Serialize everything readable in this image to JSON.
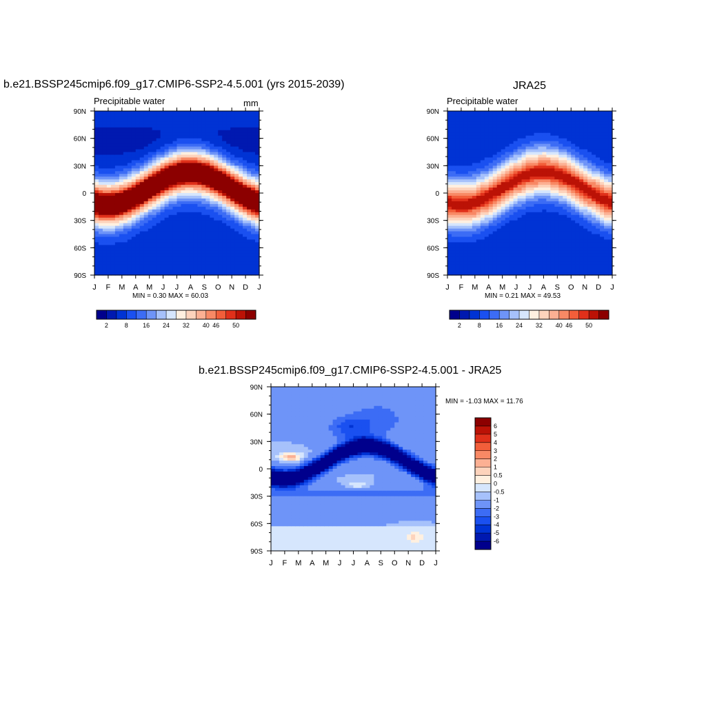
{
  "chart_data": [
    {
      "type": "heatmap",
      "title": "b.e21.BSSP245cmip6.f09_g17.CMIP6-SSP2-4.5.001 (yrs 2015-2039)",
      "left_label": "Precipitable water",
      "right_label": "mm",
      "xticks": [
        "J",
        "F",
        "M",
        "A",
        "M",
        "J",
        "J",
        "A",
        "S",
        "O",
        "N",
        "D",
        "J"
      ],
      "yticks": [
        "90N",
        "60N",
        "30N",
        "0",
        "30S",
        "60S",
        "90S"
      ],
      "min_max_text": "MIN =   0.30 MAX =  60.03",
      "colorbar_labels": [
        "2",
        "8",
        "16",
        "24",
        "32",
        "40",
        "46",
        "50"
      ],
      "colors": [
        "#00008c",
        "#0019b0",
        "#0033d4",
        "#1a50f0",
        "#3c6cf5",
        "#6e94f8",
        "#a6c1fb",
        "#d6e6fd",
        "#fff0e0",
        "#fdd3bc",
        "#fcb093",
        "#f88965",
        "#f25e3a",
        "#e0301a",
        "#bb1206",
        "#8c0000"
      ],
      "levels": [
        2,
        4,
        8,
        12,
        16,
        20,
        24,
        28,
        32,
        36,
        40,
        44,
        46,
        48,
        50
      ],
      "peak_value": 60.03,
      "min_value": 0.3
    },
    {
      "type": "heatmap",
      "title": "JRA25",
      "left_label": "Precipitable water",
      "right_label": "",
      "xticks": [
        "J",
        "F",
        "M",
        "A",
        "M",
        "J",
        "J",
        "A",
        "S",
        "O",
        "N",
        "D",
        "J"
      ],
      "yticks": [
        "90N",
        "60N",
        "30N",
        "0",
        "30S",
        "60S",
        "90S"
      ],
      "min_max_text": "MIN =   0.21 MAX =  49.53",
      "colorbar_labels": [
        "2",
        "8",
        "16",
        "24",
        "32",
        "40",
        "46",
        "50"
      ],
      "colors": [
        "#00008c",
        "#0019b0",
        "#0033d4",
        "#1a50f0",
        "#3c6cf5",
        "#6e94f8",
        "#a6c1fb",
        "#d6e6fd",
        "#fff0e0",
        "#fdd3bc",
        "#fcb093",
        "#f88965",
        "#f25e3a",
        "#e0301a",
        "#bb1206",
        "#8c0000"
      ],
      "levels": [
        2,
        4,
        8,
        12,
        16,
        20,
        24,
        28,
        32,
        36,
        40,
        44,
        46,
        48,
        50
      ],
      "peak_value": 49.53,
      "min_value": 0.21
    },
    {
      "type": "heatmap",
      "title": "b.e21.BSSP245cmip6.f09_g17.CMIP6-SSP2-4.5.001 - JRA25",
      "left_label": "",
      "right_label": "",
      "xticks": [
        "J",
        "F",
        "M",
        "A",
        "M",
        "J",
        "J",
        "A",
        "S",
        "O",
        "N",
        "D",
        "J"
      ],
      "yticks": [
        "90N",
        "60N",
        "30N",
        "0",
        "30S",
        "60S",
        "90S"
      ],
      "min_max_text": "MIN =  -1.03 MAX =  11.76",
      "colorbar_labels": [
        "6",
        "5",
        "4",
        "3",
        "2",
        "1",
        "0.5",
        "0",
        "-0.5",
        "-1",
        "-2",
        "-3",
        "-4",
        "-5",
        "-6"
      ],
      "colors": [
        "#8c0000",
        "#bb1206",
        "#e0301a",
        "#f25e3a",
        "#f88965",
        "#fcb093",
        "#fdd3bc",
        "#fff0e0",
        "#d6e6fd",
        "#a6c1fb",
        "#6e94f8",
        "#3c6cf5",
        "#1a50f0",
        "#0033d4",
        "#0019b0",
        "#00008c"
      ],
      "levels": [
        -6,
        -5,
        -4,
        -3,
        -2,
        -1,
        -0.5,
        0,
        0.5,
        1,
        2,
        3,
        4,
        5,
        6
      ],
      "peak_value": 11.76,
      "min_value": -1.03
    }
  ]
}
